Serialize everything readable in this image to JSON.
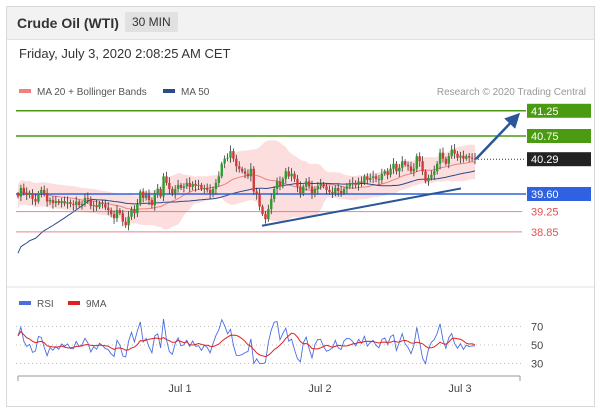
{
  "header": {
    "instrument": "Crude Oil (WTI)",
    "timeframe": "30 MIN"
  },
  "timestamp": "Friday, July 3, 2020 2:08:25 AM CET",
  "chart_data": [
    {
      "type": "candlestick",
      "legend": [
        {
          "label": "MA 20 + Bollinger Bands",
          "color": "#f08080"
        },
        {
          "label": "MA 50",
          "color": "#2e4a8c"
        }
      ],
      "credit": "Research © 2020 Trading Central",
      "price_range": [
        38.2,
        41.8
      ],
      "levels": [
        {
          "label": "41.25",
          "value": 41.25,
          "kind": "resistance",
          "color": "#4a9a12"
        },
        {
          "label": "40.75",
          "value": 40.75,
          "kind": "resistance",
          "color": "#4a9a12"
        },
        {
          "label": "40.29",
          "value": 40.29,
          "kind": "last-price",
          "color": "#222222"
        },
        {
          "label": "39.60",
          "value": 39.6,
          "kind": "support",
          "color": "#2f62e0"
        },
        {
          "label": "39.25",
          "value": 39.25,
          "kind": "support",
          "color": "#e05050"
        },
        {
          "label": "38.85",
          "value": 38.85,
          "kind": "support",
          "color": "#e05050"
        }
      ],
      "trendline": {
        "from": 38.97,
        "to": 39.71
      },
      "forecast": "bullish",
      "close_series": [
        39.55,
        39.72,
        39.62,
        39.58,
        39.62,
        39.5,
        39.45,
        39.62,
        39.68,
        39.6,
        39.45,
        39.48,
        39.42,
        39.46,
        39.42,
        39.46,
        39.41,
        39.44,
        39.4,
        39.38,
        39.45,
        39.38,
        39.4,
        39.52,
        39.5,
        39.36,
        39.38,
        39.34,
        39.42,
        39.4,
        39.33,
        39.28,
        39.2,
        39.12,
        39.28,
        39.22,
        39.05,
        38.98,
        39.15,
        39.3,
        39.22,
        39.4,
        39.65,
        39.52,
        39.58,
        39.48,
        39.38,
        39.6,
        39.7,
        39.55,
        39.95,
        39.82,
        39.7,
        39.62,
        39.7,
        39.78,
        39.72,
        39.75,
        39.82,
        39.74,
        39.8,
        39.76,
        39.78,
        39.7,
        39.72,
        39.68,
        39.6,
        39.7,
        39.82,
        39.95,
        40.2,
        40.3,
        40.32,
        40.45,
        40.3,
        40.15,
        40.1,
        40.05,
        40.0,
        39.95,
        40.1,
        39.65,
        39.6,
        39.35,
        39.2,
        39.1,
        39.3,
        39.5,
        39.7,
        39.85,
        39.75,
        39.9,
        40.05,
        39.95,
        40.0,
        39.9,
        39.75,
        39.6,
        39.75,
        39.85,
        39.75,
        39.6,
        39.7,
        39.76,
        39.8,
        39.75,
        39.68,
        39.64,
        39.62,
        39.72,
        39.66,
        39.62,
        39.7,
        39.75,
        39.8,
        39.82,
        39.78,
        39.85,
        39.82,
        39.95,
        39.88,
        39.92,
        39.95,
        39.9,
        39.88,
        40.0,
        40.05,
        39.98,
        40.1,
        40.2,
        40.05,
        40.12,
        40.25,
        40.18,
        40.15,
        40.05,
        40.1,
        40.35,
        40.25,
        40.05,
        39.85,
        39.92,
        39.98,
        40.05,
        40.2,
        40.42,
        40.3,
        40.2,
        40.35,
        40.48,
        40.4,
        40.32,
        40.36,
        40.3,
        40.35,
        40.32,
        40.3,
        40.29
      ],
      "x_ticks": [
        "Jul 1",
        "Jul 2",
        "Jul 3"
      ]
    },
    {
      "type": "line",
      "series": [
        {
          "name": "RSI",
          "color": "#4a6ee0"
        },
        {
          "name": "9MA",
          "color": "#e02020"
        }
      ],
      "y_ticks": [
        70,
        50,
        30
      ],
      "ylim": [
        20,
        80
      ]
    }
  ]
}
